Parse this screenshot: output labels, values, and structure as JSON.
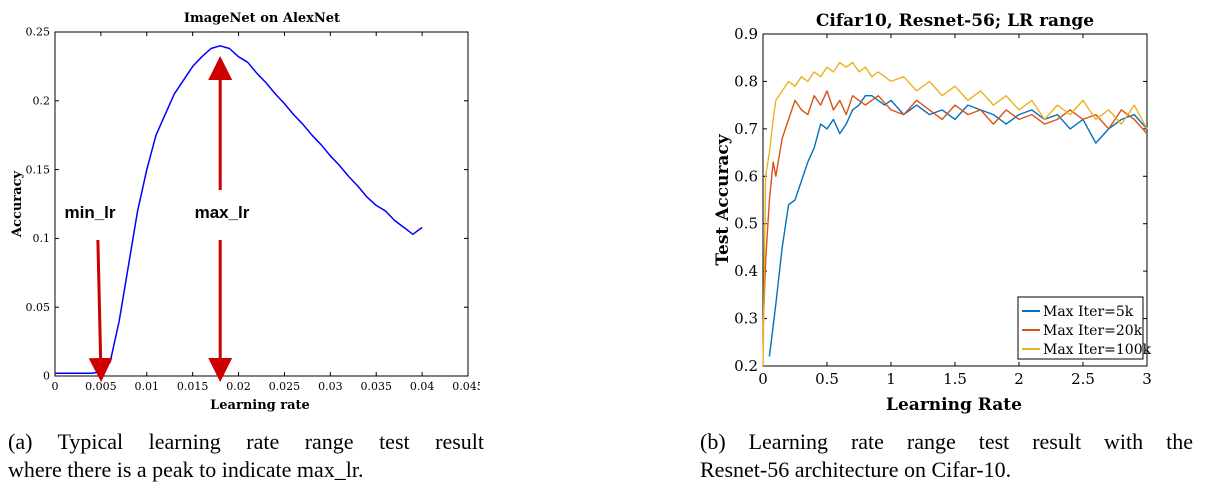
{
  "chart_data": [
    {
      "type": "line",
      "title": "ImageNet on AlexNet",
      "xlabel": "Learning rate",
      "ylabel": "Accuracy",
      "xlim": [
        0,
        0.045
      ],
      "ylim": [
        0,
        0.25
      ],
      "xticks": [
        "0",
        "0.005",
        "0.01",
        "0.015",
        "0.02",
        "0.025",
        "0.03",
        "0.035",
        "0.04",
        "0.045"
      ],
      "yticks": [
        "0",
        "0.05",
        "0.1",
        "0.15",
        "0.2",
        "0.25"
      ],
      "color": "#0000ff",
      "series": [
        {
          "x": [
            0,
            0.002,
            0.004,
            0.005,
            0.006,
            0.007,
            0.008,
            0.009,
            0.01,
            0.011,
            0.012,
            0.013,
            0.014,
            0.015,
            0.016,
            0.017,
            0.018,
            0.019,
            0.02,
            0.021,
            0.022,
            0.023,
            0.024,
            0.025,
            0.026,
            0.027,
            0.028,
            0.029,
            0.03,
            0.031,
            0.032,
            0.033,
            0.034,
            0.035,
            0.036,
            0.037,
            0.038,
            0.039,
            0.04
          ],
          "values": [
            0.002,
            0.002,
            0.002,
            0.003,
            0.01,
            0.04,
            0.08,
            0.12,
            0.15,
            0.175,
            0.19,
            0.205,
            0.215,
            0.225,
            0.232,
            0.238,
            0.24,
            0.238,
            0.232,
            0.228,
            0.22,
            0.213,
            0.205,
            0.198,
            0.19,
            0.183,
            0.175,
            0.168,
            0.16,
            0.153,
            0.145,
            0.138,
            0.13,
            0.124,
            0.12,
            0.113,
            0.108,
            0.103,
            0.108
          ]
        }
      ],
      "annotations": [
        {
          "text": "min_lr",
          "x": 0.005
        },
        {
          "text": "max_lr",
          "x": 0.018
        }
      ],
      "annotation_color": "#cc0000"
    },
    {
      "type": "line",
      "title": "Cifar10, Resnet-56; LR range",
      "xlabel": "Learning Rate",
      "ylabel": "Test Accuracy",
      "xlim": [
        0,
        3
      ],
      "ylim": [
        0.2,
        0.9
      ],
      "xticks": [
        "0",
        "0.5",
        "1",
        "1.5",
        "2",
        "2.5",
        "3"
      ],
      "yticks": [
        "0.2",
        "0.3",
        "0.4",
        "0.5",
        "0.6",
        "0.7",
        "0.8",
        "0.9"
      ],
      "legend_position": "bottom-right",
      "series": [
        {
          "name": "Max Iter=5k",
          "color": "#0072bd",
          "x": [
            0.05,
            0.1,
            0.15,
            0.2,
            0.25,
            0.3,
            0.35,
            0.4,
            0.45,
            0.5,
            0.55,
            0.6,
            0.65,
            0.7,
            0.75,
            0.8,
            0.85,
            0.9,
            0.95,
            1.0,
            1.1,
            1.2,
            1.3,
            1.4,
            1.5,
            1.6,
            1.7,
            1.8,
            1.9,
            2.0,
            2.1,
            2.2,
            2.3,
            2.4,
            2.5,
            2.6,
            2.7,
            2.8,
            2.9,
            3.0
          ],
          "values": [
            0.22,
            0.33,
            0.45,
            0.54,
            0.55,
            0.59,
            0.63,
            0.66,
            0.71,
            0.7,
            0.72,
            0.69,
            0.71,
            0.74,
            0.75,
            0.77,
            0.77,
            0.76,
            0.75,
            0.76,
            0.73,
            0.75,
            0.73,
            0.74,
            0.72,
            0.75,
            0.74,
            0.73,
            0.71,
            0.73,
            0.74,
            0.72,
            0.73,
            0.7,
            0.72,
            0.67,
            0.7,
            0.72,
            0.73,
            0.7
          ]
        },
        {
          "name": "Max Iter=20k",
          "color": "#d95319",
          "x": [
            0,
            0.02,
            0.05,
            0.08,
            0.1,
            0.15,
            0.2,
            0.25,
            0.3,
            0.35,
            0.4,
            0.45,
            0.5,
            0.55,
            0.6,
            0.65,
            0.7,
            0.75,
            0.8,
            0.9,
            1.0,
            1.1,
            1.2,
            1.3,
            1.4,
            1.5,
            1.6,
            1.7,
            1.8,
            1.9,
            2.0,
            2.1,
            2.2,
            2.3,
            2.4,
            2.5,
            2.6,
            2.7,
            2.8,
            2.9,
            3.0
          ],
          "values": [
            0.27,
            0.42,
            0.55,
            0.63,
            0.6,
            0.68,
            0.72,
            0.76,
            0.74,
            0.73,
            0.77,
            0.75,
            0.78,
            0.74,
            0.76,
            0.73,
            0.77,
            0.76,
            0.75,
            0.77,
            0.74,
            0.73,
            0.76,
            0.74,
            0.72,
            0.75,
            0.73,
            0.74,
            0.71,
            0.74,
            0.72,
            0.73,
            0.71,
            0.72,
            0.74,
            0.72,
            0.73,
            0.7,
            0.74,
            0.72,
            0.69
          ]
        },
        {
          "name": "Max Iter=100k",
          "color": "#edb120",
          "x": [
            0,
            0.02,
            0.05,
            0.08,
            0.1,
            0.15,
            0.2,
            0.25,
            0.3,
            0.35,
            0.4,
            0.45,
            0.5,
            0.55,
            0.6,
            0.65,
            0.7,
            0.75,
            0.8,
            0.85,
            0.9,
            1.0,
            1.1,
            1.2,
            1.3,
            1.4,
            1.5,
            1.6,
            1.7,
            1.8,
            1.9,
            2.0,
            2.1,
            2.2,
            2.3,
            2.4,
            2.5,
            2.6,
            2.7,
            2.8,
            2.9,
            3.0
          ],
          "values": [
            0.2,
            0.6,
            0.65,
            0.72,
            0.76,
            0.78,
            0.8,
            0.79,
            0.81,
            0.8,
            0.82,
            0.81,
            0.83,
            0.82,
            0.84,
            0.83,
            0.84,
            0.82,
            0.83,
            0.81,
            0.82,
            0.8,
            0.81,
            0.78,
            0.8,
            0.77,
            0.79,
            0.76,
            0.78,
            0.75,
            0.77,
            0.74,
            0.76,
            0.72,
            0.75,
            0.73,
            0.76,
            0.72,
            0.74,
            0.71,
            0.75,
            0.7
          ]
        }
      ]
    }
  ],
  "captions": {
    "a_line1": "(a) Typical learning rate range test result",
    "a_line2": "where there is a peak to indicate max_lr.",
    "b_line1": "(b) Learning rate range test result with the",
    "b_line2": "Resnet-56 architecture on Cifar-10."
  }
}
